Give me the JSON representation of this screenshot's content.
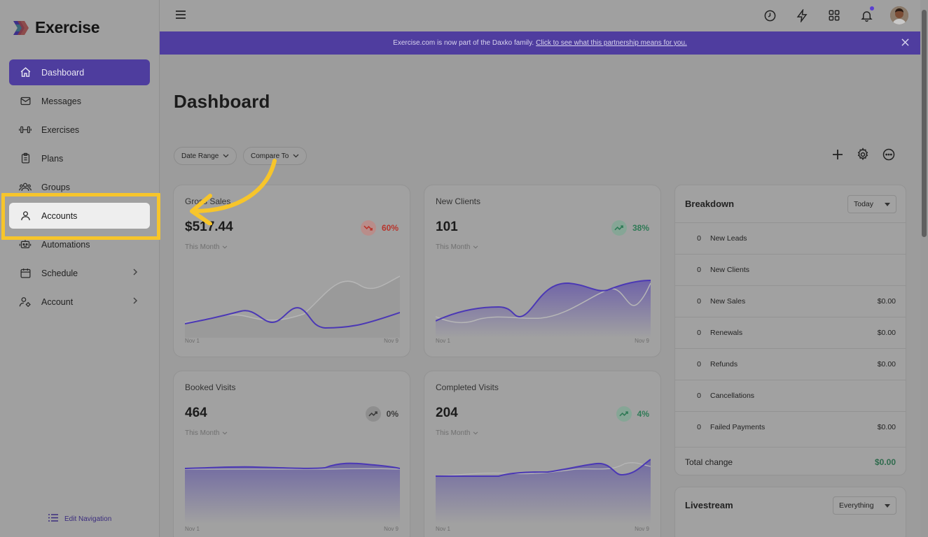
{
  "brand": {
    "name": "Exercise"
  },
  "sidebar": {
    "items": [
      {
        "label": "Dashboard",
        "icon": "home-icon"
      },
      {
        "label": "Messages",
        "icon": "mail-icon"
      },
      {
        "label": "Exercises",
        "icon": "dumbbell-icon"
      },
      {
        "label": "Plans",
        "icon": "clipboard-icon"
      },
      {
        "label": "Groups",
        "icon": "groups-icon"
      },
      {
        "label": "Accounts",
        "icon": "user-icon"
      },
      {
        "label": "Automations",
        "icon": "robot-icon"
      },
      {
        "label": "Schedule",
        "icon": "calendar-icon"
      },
      {
        "label": "Account",
        "icon": "user-gear-icon"
      }
    ],
    "edit_navigation": "Edit Navigation"
  },
  "banner": {
    "text": "Exercise.com is now part of the Daxko family.",
    "link": "Click to see what this partnership means for you."
  },
  "main": {
    "title": "Dashboard",
    "filters": {
      "date_range": "Date Range",
      "compare_to": "Compare To"
    }
  },
  "cards": [
    {
      "title": "Gross Sales",
      "value": "$517.44",
      "change": "60%",
      "trend": "down",
      "period": "This Month",
      "x_start": "Nov 1",
      "x_end": "Nov 9"
    },
    {
      "title": "New Clients",
      "value": "101",
      "change": "38%",
      "trend": "up",
      "period": "This Month",
      "x_start": "Nov 1",
      "x_end": "Nov 9"
    },
    {
      "title": "Booked Visits",
      "value": "464",
      "change": "0%",
      "trend": "flat",
      "period": "This Month",
      "x_start": "Nov 1",
      "x_end": "Nov 9"
    },
    {
      "title": "Completed Visits",
      "value": "204",
      "change": "4%",
      "trend": "up",
      "period": "This Month",
      "x_start": "Nov 1",
      "x_end": "Nov 9"
    }
  ],
  "breakdown": {
    "title": "Breakdown",
    "range": "Today",
    "rows": [
      {
        "count": "0",
        "label": "New Leads",
        "amount": ""
      },
      {
        "count": "0",
        "label": "New Clients",
        "amount": ""
      },
      {
        "count": "0",
        "label": "New Sales",
        "amount": "$0.00"
      },
      {
        "count": "0",
        "label": "Renewals",
        "amount": "$0.00"
      },
      {
        "count": "0",
        "label": "Refunds",
        "amount": "$0.00"
      },
      {
        "count": "0",
        "label": "Cancellations",
        "amount": ""
      },
      {
        "count": "0",
        "label": "Failed Payments",
        "amount": "$0.00"
      }
    ],
    "total_label": "Total change",
    "total_amount": "$0.00"
  },
  "livestream": {
    "title": "Livestream",
    "filter": "Everything"
  },
  "colors": {
    "accent": "#4e3d9e",
    "highlight": "#f7c52b",
    "up": "#2f7a56",
    "down": "#b8352c"
  }
}
